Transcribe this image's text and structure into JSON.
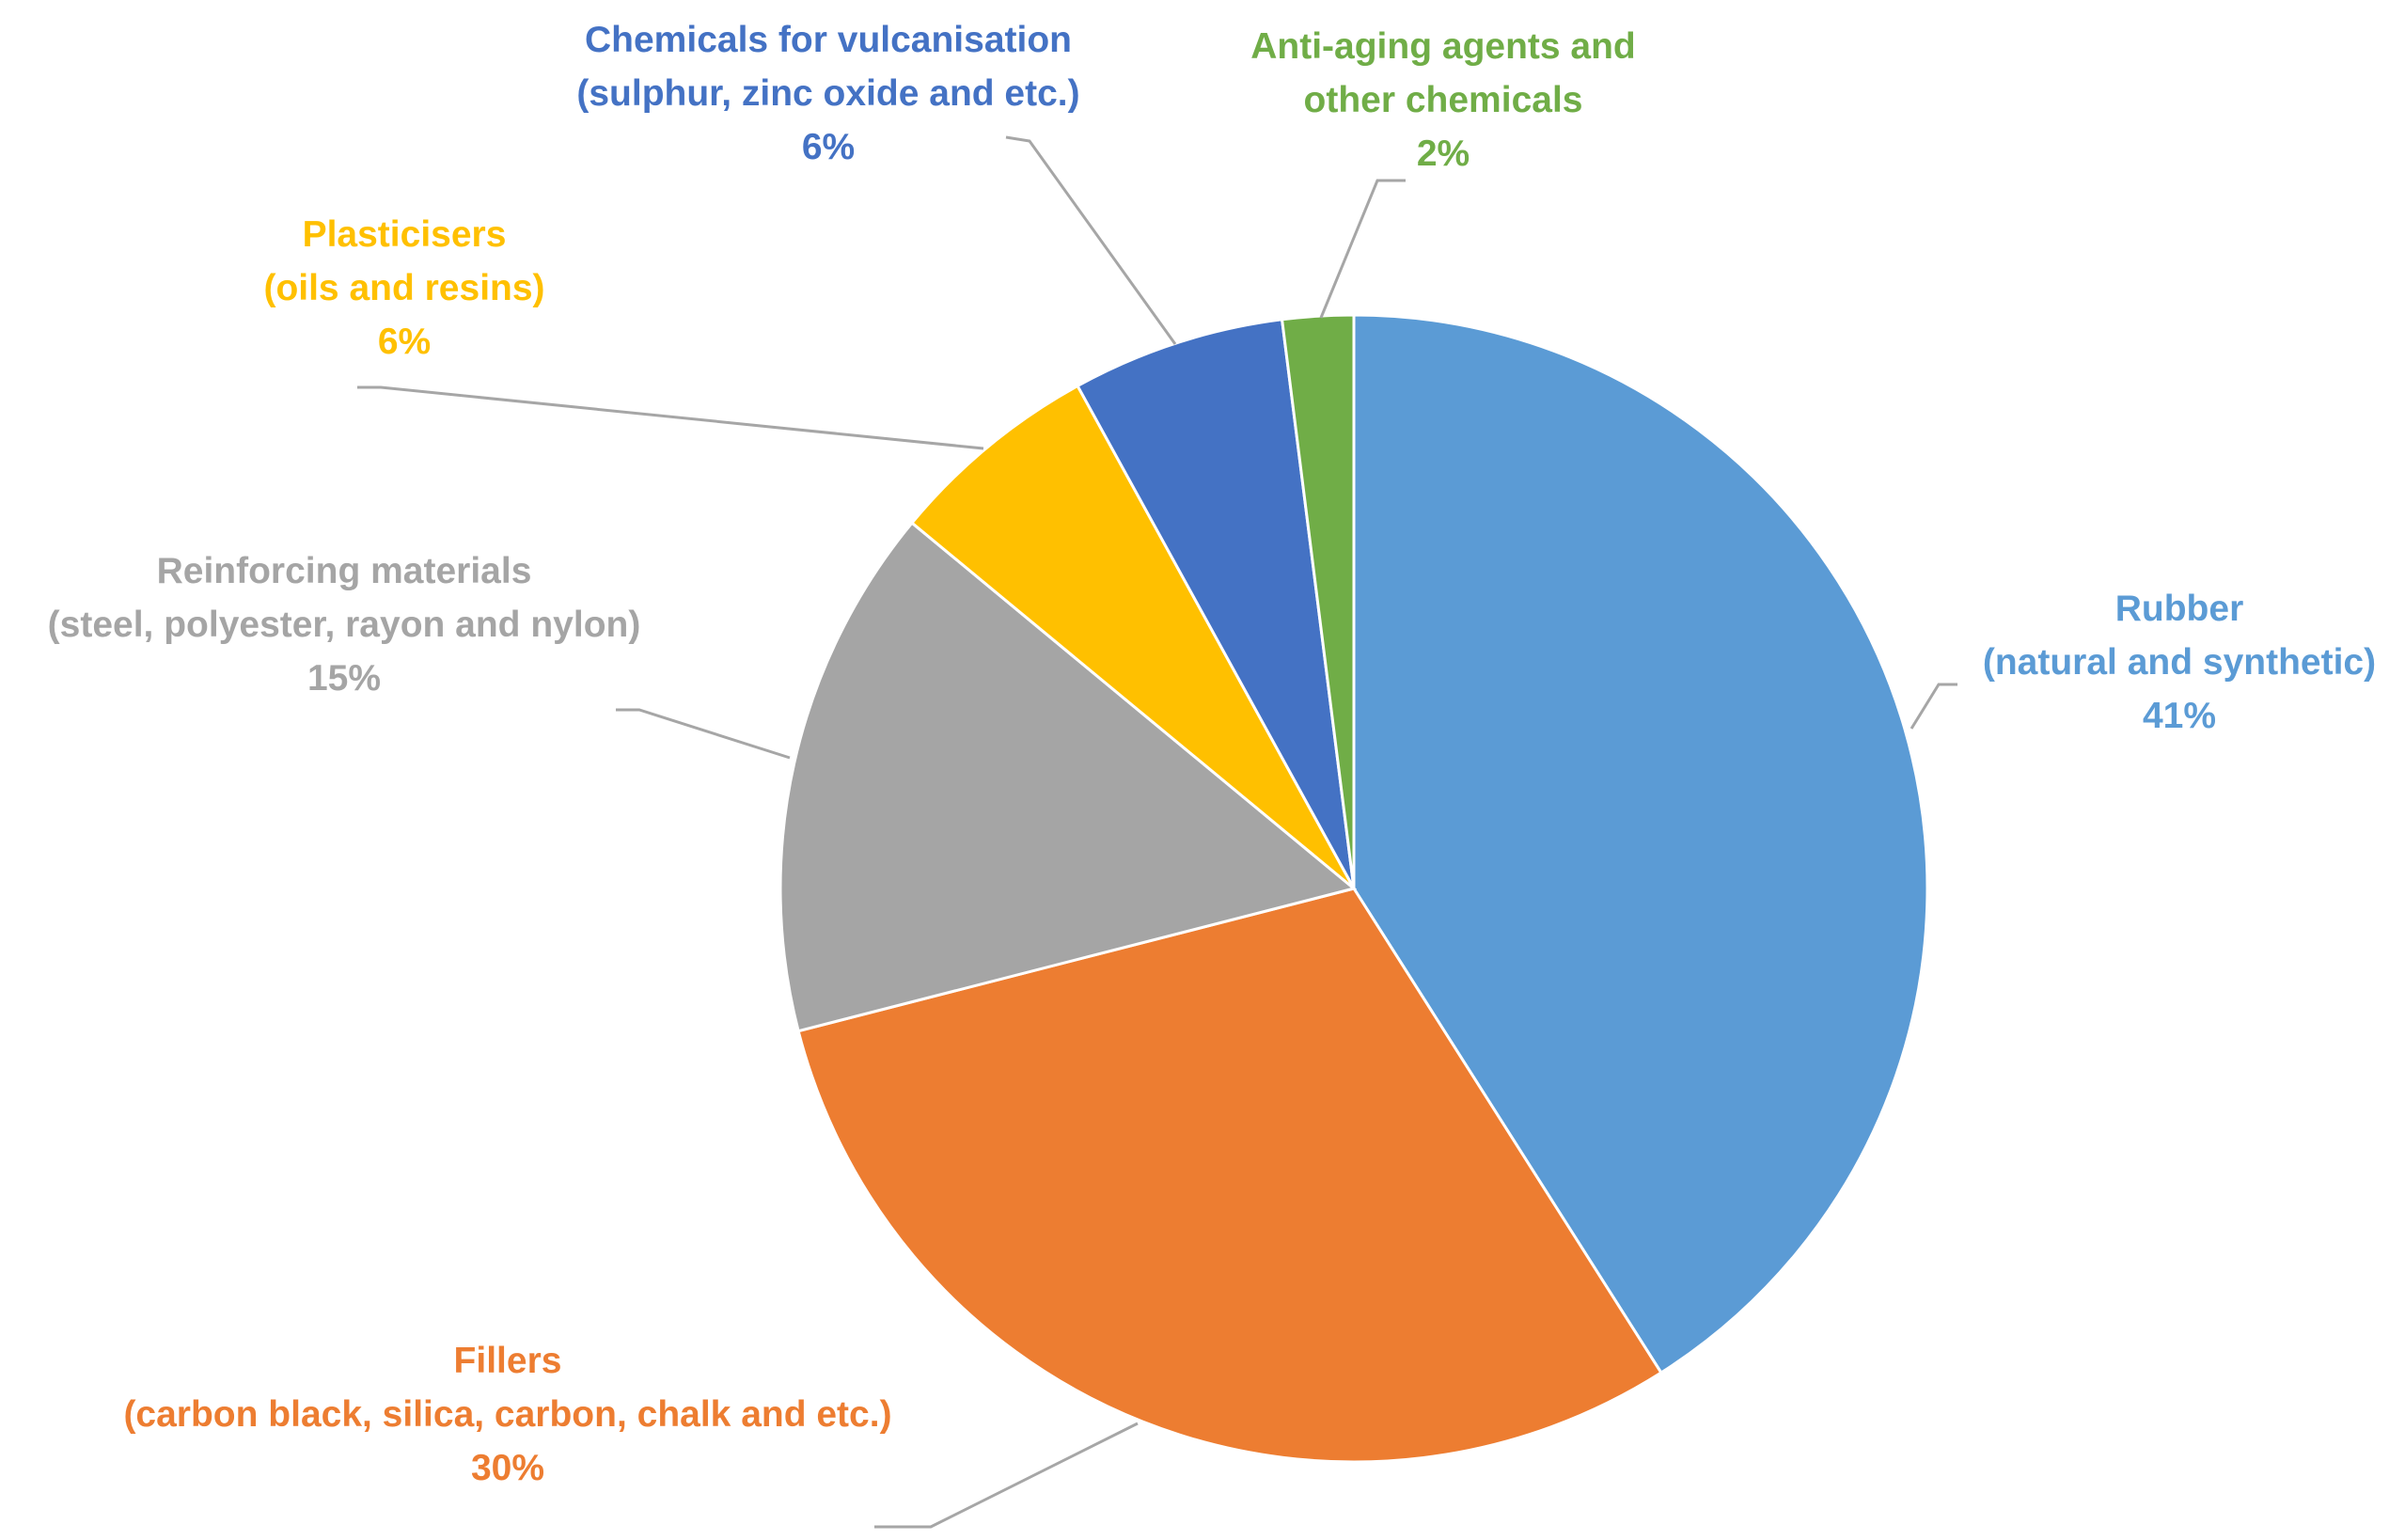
{
  "chart_data": {
    "type": "pie",
    "slices": [
      {
        "key": "rubber",
        "lines": [
          "Rubber",
          "(natural and synthetic)"
        ],
        "value": 41,
        "pct_label": "41%",
        "color": "#5b9bd5"
      },
      {
        "key": "fillers",
        "lines": [
          "Fillers",
          "(carbon black, silica, carbon, chalk and etc.)"
        ],
        "value": 30,
        "pct_label": "30%",
        "color": "#ed7d31"
      },
      {
        "key": "reinforcing-materials",
        "lines": [
          "Reinforcing materials",
          "(steel, polyester, rayon and nylon)"
        ],
        "value": 15,
        "pct_label": "15%",
        "color": "#a5a5a5"
      },
      {
        "key": "plasticisers",
        "lines": [
          "Plasticisers",
          "(oils and resins)"
        ],
        "value": 6,
        "pct_label": "6%",
        "color": "#ffc000"
      },
      {
        "key": "chemicals-for-vulcanisation",
        "lines": [
          "Chemicals for vulcanisation",
          "(sulphur, zinc oxide and etc.)"
        ],
        "value": 6,
        "pct_label": "6%",
        "color": "#4472c4"
      },
      {
        "key": "anti-aging-agents",
        "lines": [
          "Anti-aging agents and",
          "other chemicals"
        ],
        "value": 2,
        "pct_label": "2%",
        "color": "#70ad47"
      }
    ],
    "start_position": "12 o'clock",
    "direction": "clockwise",
    "legend": "none",
    "data_labels": "outside with leader lines"
  }
}
